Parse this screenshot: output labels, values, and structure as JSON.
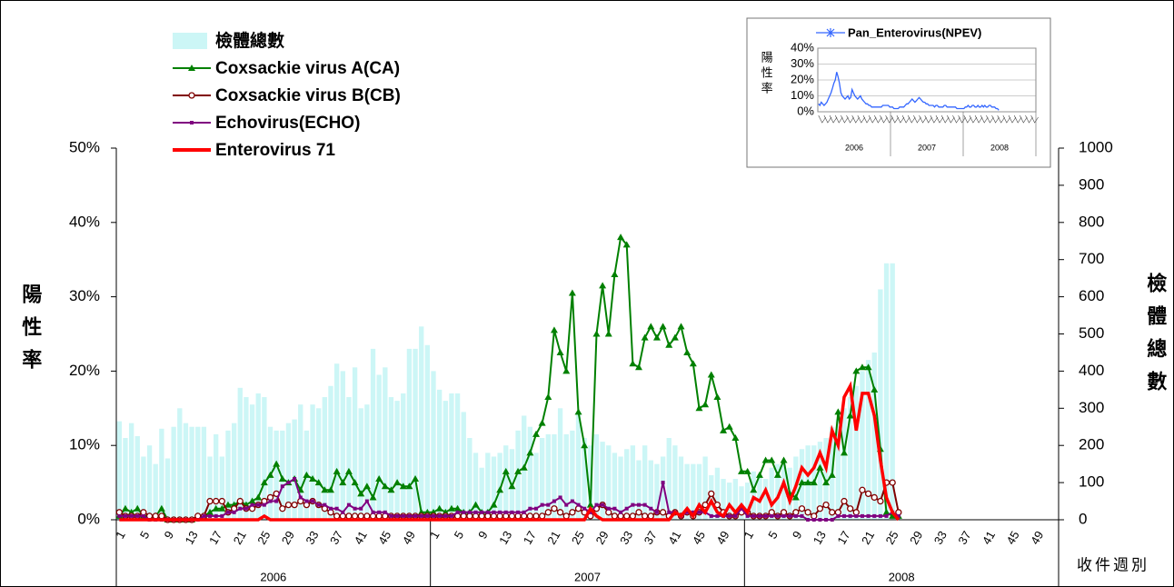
{
  "chart_data": [
    {
      "type": "combo",
      "y_label": "陽性率",
      "y2_label": "檢體總數",
      "x_label": "收件週別",
      "years": [
        "2006",
        "2007",
        "2008"
      ],
      "categories": [
        "1",
        null,
        null,
        null,
        "5",
        null,
        null,
        null,
        "9",
        null,
        null,
        null,
        "13",
        null,
        null,
        null,
        "17",
        null,
        null,
        null,
        "21",
        null,
        null,
        null,
        "25",
        null,
        null,
        null,
        "29",
        null,
        null,
        null,
        "33",
        null,
        null,
        null,
        "37",
        null,
        null,
        null,
        "41",
        null,
        null,
        null,
        "45",
        null,
        null,
        null,
        "49",
        null,
        null,
        null,
        "1",
        null,
        null,
        null,
        "5",
        null,
        null,
        null,
        "9",
        null,
        null,
        null,
        "13",
        null,
        null,
        null,
        "17",
        null,
        null,
        null,
        "21",
        null,
        null,
        null,
        "25",
        null,
        null,
        null,
        "29",
        null,
        null,
        null,
        "33",
        null,
        null,
        null,
        "37",
        null,
        null,
        null,
        "41",
        null,
        null,
        null,
        "45",
        null,
        null,
        null,
        "49",
        null,
        null,
        null,
        "1",
        null,
        null,
        null,
        "5",
        null,
        null,
        null,
        "9",
        null,
        null,
        null,
        "13",
        null,
        null,
        null,
        "17",
        null,
        null,
        null,
        "21",
        null,
        null,
        null,
        "25",
        null,
        null,
        null,
        "29",
        null,
        null,
        null,
        "33",
        null,
        null,
        null,
        "37",
        null,
        null,
        null,
        "41",
        null,
        null,
        null,
        "45",
        null,
        null,
        null,
        "49",
        null,
        null,
        null
      ],
      "ylim": [
        0,
        50
      ],
      "yticks": [
        {
          "value": 0,
          "label": "0%"
        },
        {
          "value": 10,
          "label": "10%"
        },
        {
          "value": 20,
          "label": "20%"
        },
        {
          "value": 30,
          "label": "30%"
        },
        {
          "value": 40,
          "label": "40%"
        },
        {
          "value": 50,
          "label": "50%"
        }
      ],
      "y2lim": [
        0,
        1000
      ],
      "y2ticks": [
        0,
        100,
        200,
        300,
        400,
        500,
        600,
        700,
        800,
        900,
        1000
      ],
      "legend": "upper left",
      "series": [
        {
          "name": "檢體總數",
          "kind": "bar",
          "axis": "y2",
          "color": "#ccf6f6",
          "values": [
            265,
            220,
            260,
            225,
            170,
            200,
            150,
            245,
            165,
            250,
            300,
            260,
            250,
            250,
            250,
            170,
            230,
            170,
            240,
            260,
            355,
            330,
            310,
            340,
            330,
            250,
            240,
            240,
            260,
            270,
            310,
            240,
            310,
            300,
            330,
            360,
            420,
            400,
            330,
            410,
            300,
            310,
            460,
            390,
            410,
            330,
            320,
            340,
            460,
            460,
            520,
            470,
            400,
            350,
            320,
            340,
            340,
            290,
            220,
            180,
            140,
            180,
            170,
            180,
            200,
            190,
            240,
            280,
            250,
            180,
            220,
            230,
            230,
            300,
            230,
            240,
            290,
            220,
            200,
            230,
            210,
            200,
            180,
            170,
            190,
            200,
            160,
            200,
            160,
            150,
            170,
            220,
            200,
            170,
            150,
            150,
            150,
            170,
            120,
            140,
            110,
            100,
            110,
            90,
            100,
            130,
            120,
            110,
            140,
            150,
            150,
            140,
            170,
            190,
            200,
            200,
            210,
            220,
            250,
            270,
            300,
            330,
            360,
            400,
            430,
            450,
            620,
            690,
            690,
            20,
            null,
            null,
            null,
            null,
            null,
            null,
            null,
            null,
            null,
            null,
            null,
            null,
            null,
            null,
            null,
            null,
            null,
            null,
            null,
            null,
            null,
            null,
            null,
            null,
            null,
            null
          ]
        },
        {
          "name": "Coxsackie virus A(CA)",
          "kind": "line",
          "marker": "triangle",
          "color": "#008000",
          "values": [
            0.5,
            1.5,
            1,
            1.5,
            0.5,
            0.5,
            0.5,
            1.5,
            0,
            0,
            0,
            0,
            0,
            0.5,
            0.5,
            1,
            1.5,
            1.5,
            2,
            2,
            2.5,
            2,
            2.5,
            3,
            5,
            6,
            7.5,
            5.5,
            5,
            5.5,
            4,
            6,
            5.5,
            5,
            4,
            4,
            6.5,
            5,
            6.5,
            5,
            3.5,
            4.5,
            3,
            5.5,
            4.5,
            4,
            5,
            4.5,
            4.5,
            5.5,
            1,
            1,
            1,
            1.5,
            1,
            1.5,
            1.5,
            1,
            1,
            2,
            1,
            1,
            2,
            4,
            6.5,
            4.5,
            6.5,
            7,
            9,
            11.5,
            13,
            16.5,
            25.5,
            22.5,
            20,
            30.5,
            14.5,
            10,
            2,
            25,
            31.5,
            25,
            33,
            38,
            37,
            21,
            20.5,
            24.5,
            26,
            24.5,
            26,
            23.5,
            24.5,
            26,
            22.5,
            21,
            15,
            15.5,
            19.5,
            16.5,
            12,
            12.5,
            11,
            6.5,
            6.5,
            4,
            6,
            8,
            8,
            6,
            8,
            3.5,
            3,
            5,
            5,
            5,
            7,
            5,
            6,
            14.5,
            9,
            14,
            20,
            20.5,
            20.5,
            17.5,
            9.5,
            1,
            0.5,
            0.5,
            null,
            null,
            null,
            null,
            null,
            null,
            null,
            null,
            null,
            null,
            null,
            null,
            null,
            null,
            null,
            null,
            null,
            null,
            null,
            null,
            null,
            null,
            null,
            null,
            null,
            null
          ]
        },
        {
          "name": "Coxsackie virus B(CB)",
          "kind": "line",
          "marker": "circle",
          "color": "#800000",
          "values": [
            1,
            0.5,
            0.5,
            0.5,
            1,
            0.5,
            0.5,
            0.5,
            0,
            0,
            0,
            0,
            0,
            0.5,
            0.5,
            2.5,
            2.5,
            2.5,
            1,
            1.5,
            2.5,
            1.5,
            1.5,
            2,
            2.5,
            3,
            3.5,
            1.5,
            2,
            2,
            2.5,
            2,
            2.5,
            2,
            1.5,
            1,
            0.5,
            0.5,
            0.5,
            0.5,
            0.5,
            0.5,
            0.5,
            0.5,
            0.5,
            0.5,
            0.5,
            0.5,
            0.5,
            0.5,
            0.5,
            0.5,
            0.5,
            0.5,
            0.5,
            0.5,
            0.5,
            0.5,
            0.5,
            0.5,
            0.5,
            0.5,
            0.5,
            0.5,
            0.5,
            0.5,
            0.5,
            0.5,
            0.5,
            0.5,
            0.5,
            1,
            1.5,
            1,
            0.5,
            1,
            1.5,
            1,
            0.5,
            1.5,
            2,
            1,
            0.5,
            0.5,
            0.5,
            0.5,
            1,
            0.5,
            0.5,
            1,
            1,
            0.5,
            1,
            0.5,
            1,
            0.5,
            1,
            2,
            3.5,
            2,
            1,
            0.5,
            0.5,
            1,
            1,
            0.5,
            0.5,
            0.5,
            1,
            0.5,
            1,
            0.5,
            1,
            1.5,
            1,
            0.5,
            1.5,
            2,
            1,
            1,
            2.5,
            1.5,
            1,
            4,
            3.5,
            3,
            2.5,
            5,
            5,
            1,
            null,
            null,
            null,
            null,
            null,
            null,
            null,
            null,
            null,
            null,
            null,
            null,
            null,
            null,
            null,
            null,
            null,
            null,
            null,
            null,
            null,
            null,
            null,
            null,
            null,
            null
          ]
        },
        {
          "name": "Echovirus(ECHO)",
          "kind": "line",
          "marker": "square",
          "color": "#800080",
          "values": [
            0.5,
            0.5,
            0.5,
            0.5,
            0.5,
            0,
            0,
            0,
            0,
            0,
            0,
            0,
            0,
            0,
            0.5,
            0.5,
            0.5,
            0.5,
            1,
            1,
            1.5,
            1.5,
            2,
            2,
            2,
            2.5,
            2.5,
            4.5,
            5,
            5.5,
            3,
            2.5,
            2.5,
            2,
            2,
            1.5,
            1.5,
            1,
            2,
            1.5,
            1.5,
            2.5,
            1,
            1,
            1,
            0.5,
            0.5,
            0.5,
            0.5,
            0.5,
            0.5,
            0.5,
            0.5,
            0.5,
            0.5,
            0.5,
            1,
            1,
            1,
            1,
            1,
            1,
            1,
            1,
            1,
            1,
            1,
            1,
            1.5,
            1.5,
            2,
            2,
            2.5,
            3,
            2,
            2.5,
            2,
            1.5,
            1,
            2,
            2,
            1.5,
            1.5,
            1,
            1.5,
            2,
            2,
            2,
            1.5,
            1,
            5,
            1,
            1,
            0.5,
            1,
            1,
            1,
            1,
            0.5,
            0.5,
            0.5,
            0.5,
            0.5,
            1.5,
            0.5,
            0.5,
            0.5,
            0.5,
            0.5,
            0.5,
            0.5,
            0.5,
            0.5,
            0.5,
            0,
            0,
            0,
            0,
            0,
            0.5,
            0.5,
            0.5,
            0.5,
            0.5,
            0.5,
            0.5,
            0.5,
            0.5,
            1,
            0.5,
            null,
            null,
            null,
            null,
            null,
            null,
            null,
            null,
            null,
            null,
            null,
            null,
            null,
            null,
            null,
            null,
            null,
            null,
            null,
            null,
            null,
            null,
            null,
            null,
            null,
            null
          ]
        },
        {
          "name": "Enterovirus 71",
          "kind": "line",
          "marker": "none",
          "color": "#ff0000",
          "values": [
            0,
            0,
            0,
            0,
            0,
            0,
            0,
            0,
            0,
            0,
            0,
            0,
            0,
            0,
            0,
            0,
            0,
            0,
            0,
            0,
            0,
            0,
            0,
            0,
            0.5,
            0,
            0,
            0,
            0,
            0,
            0,
            0,
            0,
            0,
            0,
            0,
            0,
            0,
            0,
            0,
            0,
            0,
            0,
            0,
            0,
            0,
            0,
            0,
            0,
            0,
            0,
            0,
            0,
            0,
            0,
            0,
            0,
            0,
            0,
            0,
            0,
            0,
            0,
            0,
            0,
            0,
            0,
            0,
            0,
            0,
            0,
            0,
            0,
            0,
            0,
            0,
            0,
            0,
            1.5,
            0.5,
            0,
            0,
            0,
            0,
            0,
            0,
            0,
            0,
            0,
            0,
            0,
            0,
            1,
            0.5,
            1.5,
            0.5,
            2,
            1,
            2.5,
            1,
            0.5,
            2,
            1,
            2,
            1,
            3,
            2.5,
            4,
            2,
            3,
            5,
            2.5,
            4.5,
            7,
            6,
            7,
            9,
            7,
            12,
            10,
            16.5,
            18,
            12,
            17,
            17,
            14,
            8,
            3,
            1,
            0,
            null,
            null,
            null,
            null,
            null,
            null,
            null,
            null,
            null,
            null,
            null,
            null,
            null,
            null,
            null,
            null,
            null,
            null,
            null,
            null,
            null,
            null,
            null,
            null,
            null,
            null
          ]
        }
      ]
    },
    {
      "type": "inset_line",
      "y_label": "陽性率",
      "years": [
        "2006",
        "2007",
        "2008"
      ],
      "ylim": [
        0,
        40
      ],
      "yticks": [
        {
          "value": 0,
          "label": "0%"
        },
        {
          "value": 10,
          "label": "10%"
        },
        {
          "value": 20,
          "label": "20%"
        },
        {
          "value": 30,
          "label": "30%"
        },
        {
          "value": 40,
          "label": "40%"
        }
      ],
      "series": [
        {
          "name": "Pan_Enterovirus(NPEV)",
          "color": "#3366ff",
          "values": [
            5,
            4,
            6,
            5,
            4,
            5,
            6,
            8,
            10,
            12,
            15,
            18,
            20,
            25,
            22,
            18,
            12,
            10,
            9,
            8,
            9,
            10,
            8,
            9,
            14,
            12,
            10,
            9,
            8,
            9,
            10,
            8,
            7,
            6,
            5,
            5,
            4,
            4,
            3,
            3,
            3,
            3,
            3,
            3,
            3,
            3,
            4,
            4,
            4,
            4,
            4,
            3,
            3,
            3,
            2,
            2,
            2,
            2,
            3,
            3,
            3,
            3,
            4,
            5,
            5,
            6,
            7,
            8,
            7,
            6,
            7,
            8,
            9,
            8,
            7,
            6,
            6,
            5,
            5,
            4,
            4,
            4,
            4,
            3,
            4,
            4,
            3,
            3,
            3,
            3,
            4,
            4,
            3,
            3,
            3,
            3,
            3,
            3,
            3,
            2,
            2,
            2,
            2,
            2,
            2,
            3,
            3,
            4,
            3,
            3,
            4,
            4,
            3,
            3,
            4,
            3,
            3,
            4,
            3,
            4,
            3,
            3,
            4,
            4,
            3,
            3,
            3,
            2,
            2,
            1
          ]
        }
      ]
    }
  ]
}
